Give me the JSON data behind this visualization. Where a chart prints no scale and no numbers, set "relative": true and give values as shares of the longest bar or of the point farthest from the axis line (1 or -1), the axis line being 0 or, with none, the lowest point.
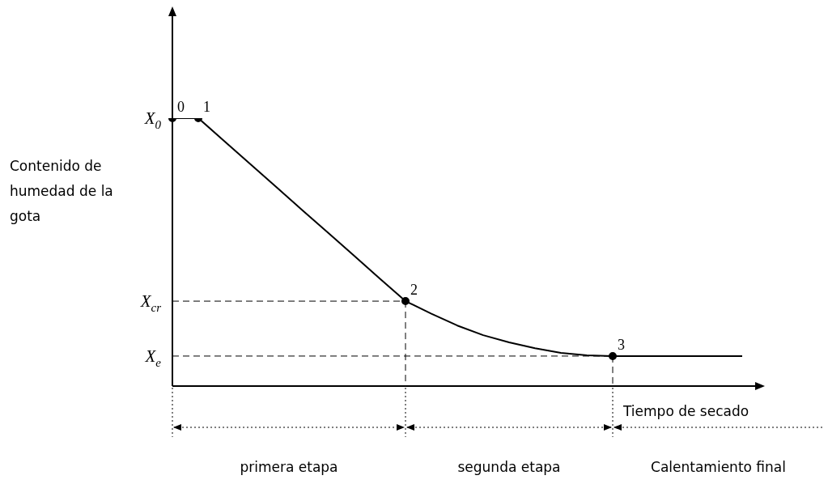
{
  "chart_data": {
    "type": "line",
    "relative": true,
    "ylabel": "Contenido de humedad de la gota",
    "xlabel": "Tiempo de secado",
    "categories": [
      null,
      null,
      null,
      null,
      null,
      null,
      null,
      null,
      null,
      null,
      null,
      null,
      null,
      null,
      null,
      null,
      null,
      null,
      null,
      null,
      null,
      null,
      null
    ],
    "series": [
      {
        "color": "#000000",
        "values": [
          1,
          1,
          0.915,
          0.829,
          0.744,
          0.658,
          0.573,
          0.488,
          0.402,
          0.317,
          0.27,
          0.226,
          0.19,
          0.163,
          0.141,
          0.124,
          0.115,
          0.112,
          0.112,
          0.112,
          0.112,
          0.112,
          0.112
        ],
        "line_style": "solid"
      }
    ],
    "ref_lines": [
      {
        "axis": "y",
        "value": 0.317,
        "label": "X$_{cr}$",
        "line_style": "dashed"
      },
      {
        "axis": "y",
        "value": 0.112,
        "label": "X$_{e}$",
        "line_style": "dashed"
      }
    ],
    "annotations": [
      "primera etapa",
      "segunda etapa",
      "Calentamiento final",
      "X$_{0}$",
      "0",
      "1",
      {
        "text": "2",
        "y": 0.317
      },
      {
        "text": "3",
        "y": 0.112
      }
    ]
  }
}
